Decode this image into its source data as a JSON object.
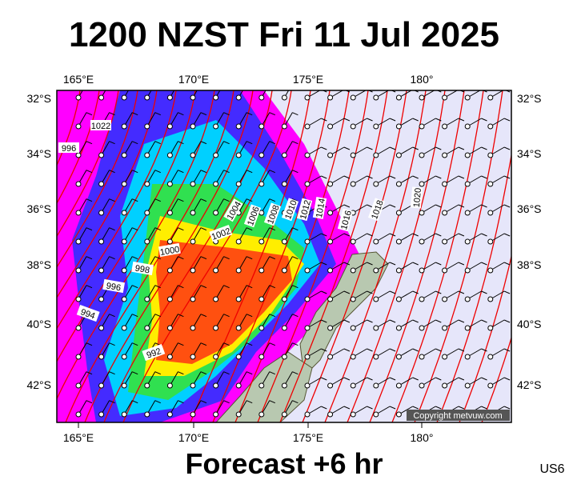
{
  "header": {
    "title": "1200 NZST Fri 11 Jul 2025"
  },
  "map": {
    "longitude_labels": [
      "165°E",
      "170°E",
      "175°E",
      "180°"
    ],
    "latitude_labels": [
      "32°S",
      "34°S",
      "36°S",
      "38°S",
      "40°S",
      "42°S"
    ],
    "isobar_labels": [
      "1022",
      "996",
      "1004",
      "1006",
      "1008",
      "1010",
      "1012",
      "1014",
      "1016",
      "1018",
      "1020",
      "1002",
      "1000",
      "998",
      "996",
      "994",
      "992"
    ],
    "copyright": "Copyright metvuw.com"
  },
  "footer": {
    "subtitle": "Forecast +6 hr",
    "code": "US6"
  }
}
